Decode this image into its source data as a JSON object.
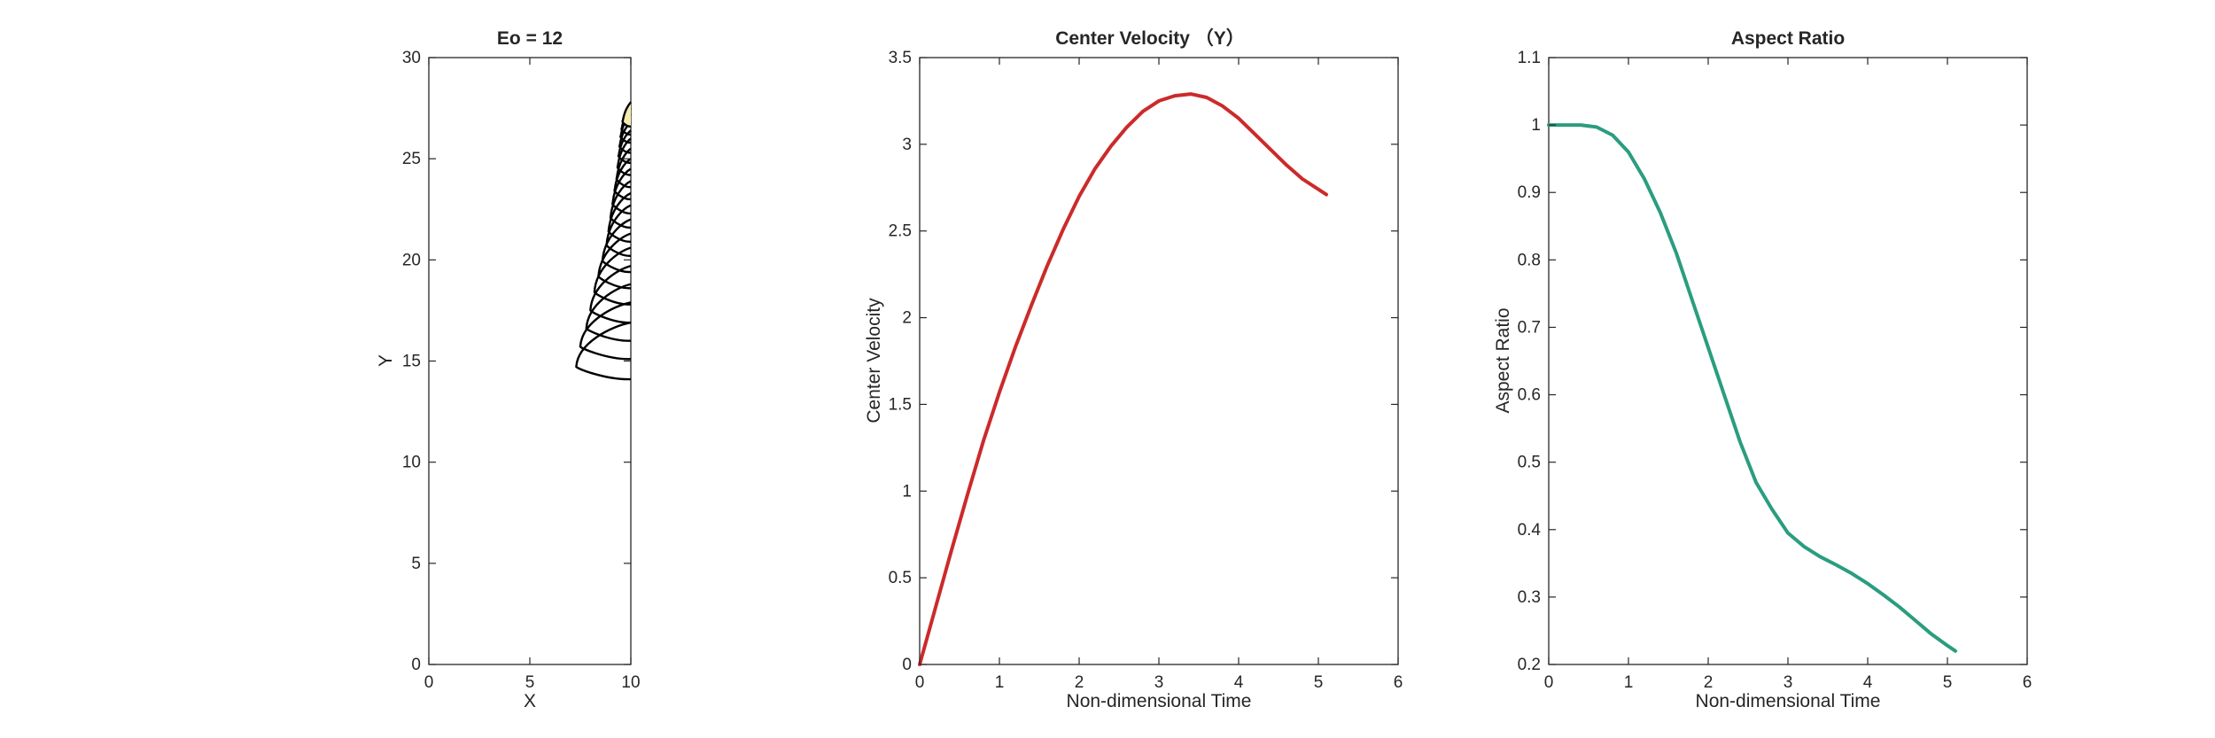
{
  "chart_data": [
    {
      "type": "line",
      "title": "Eo = 12",
      "xlabel": "X",
      "ylabel": "Y",
      "xlim": [
        0,
        10
      ],
      "ylim": [
        0,
        30
      ],
      "xticks": [
        "0",
        "5",
        "10"
      ],
      "yticks": [
        "0",
        "5",
        "10",
        "15",
        "20",
        "25",
        "30"
      ],
      "grid": false,
      "legend": "none",
      "color": "#000000",
      "fill_color": "#f3ecb0",
      "series": [
        {
          "values": [
            {
              "bottom": 14.1,
              "top": 16.9,
              "left": 7.3
            },
            {
              "bottom": 15.1,
              "top": 17.9,
              "left": 7.5
            },
            {
              "bottom": 16.0,
              "top": 18.8,
              "left": 7.8
            },
            {
              "bottom": 16.9,
              "top": 19.7,
              "left": 8.0
            },
            {
              "bottom": 17.8,
              "top": 20.6,
              "left": 8.2
            },
            {
              "bottom": 18.6,
              "top": 21.3,
              "left": 8.4
            },
            {
              "bottom": 19.4,
              "top": 22.0,
              "left": 8.6
            },
            {
              "bottom": 20.2,
              "top": 22.7,
              "left": 8.8
            },
            {
              "bottom": 20.9,
              "top": 23.3,
              "left": 8.9
            },
            {
              "bottom": 21.6,
              "top": 23.9,
              "left": 9.0
            },
            {
              "bottom": 22.3,
              "top": 24.5,
              "left": 9.1
            },
            {
              "bottom": 23.0,
              "top": 25.0,
              "left": 9.2
            },
            {
              "bottom": 23.6,
              "top": 25.5,
              "left": 9.3
            },
            {
              "bottom": 24.2,
              "top": 26.0,
              "left": 9.35
            },
            {
              "bottom": 24.8,
              "top": 26.4,
              "left": 9.4
            },
            {
              "bottom": 25.3,
              "top": 26.8,
              "left": 9.45
            },
            {
              "bottom": 25.8,
              "top": 27.2,
              "left": 9.5
            },
            {
              "bottom": 26.2,
              "top": 27.5,
              "left": 9.55
            },
            {
              "bottom": 26.6,
              "top": 27.8,
              "left": 9.6
            }
          ]
        }
      ]
    },
    {
      "type": "line",
      "title": "Center Velocity （Y）",
      "xlabel": "Non-dimensional Time",
      "ylabel": "Center Velocity",
      "xlim": [
        0,
        6
      ],
      "ylim": [
        0,
        3.5
      ],
      "xticks": [
        "0",
        "1",
        "2",
        "3",
        "4",
        "5",
        "6"
      ],
      "yticks": [
        "0",
        "0.5",
        "1",
        "1.5",
        "2",
        "2.5",
        "3",
        "3.5"
      ],
      "grid": false,
      "legend": "none",
      "color": "#cc2a2a",
      "series": [
        {
          "x": [
            0,
            0.2,
            0.4,
            0.6,
            0.8,
            1.0,
            1.2,
            1.4,
            1.6,
            1.8,
            2.0,
            2.2,
            2.4,
            2.6,
            2.8,
            3.0,
            3.2,
            3.4,
            3.6,
            3.8,
            4.0,
            4.2,
            4.4,
            4.6,
            4.8,
            5.0,
            5.1
          ],
          "y": [
            0,
            0.33,
            0.66,
            0.98,
            1.29,
            1.57,
            1.83,
            2.07,
            2.3,
            2.51,
            2.7,
            2.86,
            2.99,
            3.1,
            3.19,
            3.25,
            3.28,
            3.29,
            3.27,
            3.22,
            3.15,
            3.06,
            2.97,
            2.88,
            2.8,
            2.74,
            2.71
          ]
        }
      ]
    },
    {
      "type": "line",
      "title": "Aspect Ratio",
      "xlabel": "Non-dimensional Time",
      "ylabel": "Aspect Ratio",
      "xlim": [
        0,
        6
      ],
      "ylim": [
        0.2,
        1.1
      ],
      "xticks": [
        "0",
        "1",
        "2",
        "3",
        "4",
        "5",
        "6"
      ],
      "yticks": [
        "0.2",
        "0.3",
        "0.4",
        "0.5",
        "0.6",
        "0.7",
        "0.8",
        "0.9",
        "1",
        "1.1"
      ],
      "grid": false,
      "legend": "none",
      "color": "#2a9d7f",
      "series": [
        {
          "x": [
            0,
            0.2,
            0.4,
            0.6,
            0.8,
            1.0,
            1.2,
            1.4,
            1.6,
            1.8,
            2.0,
            2.2,
            2.4,
            2.6,
            2.8,
            3.0,
            3.2,
            3.4,
            3.6,
            3.8,
            4.0,
            4.2,
            4.4,
            4.6,
            4.8,
            5.0,
            5.1
          ],
          "y": [
            1.0,
            1.0,
            1.0,
            0.997,
            0.985,
            0.96,
            0.92,
            0.87,
            0.81,
            0.74,
            0.67,
            0.6,
            0.53,
            0.47,
            0.43,
            0.395,
            0.375,
            0.36,
            0.348,
            0.335,
            0.32,
            0.303,
            0.285,
            0.265,
            0.245,
            0.228,
            0.22
          ]
        }
      ]
    }
  ]
}
